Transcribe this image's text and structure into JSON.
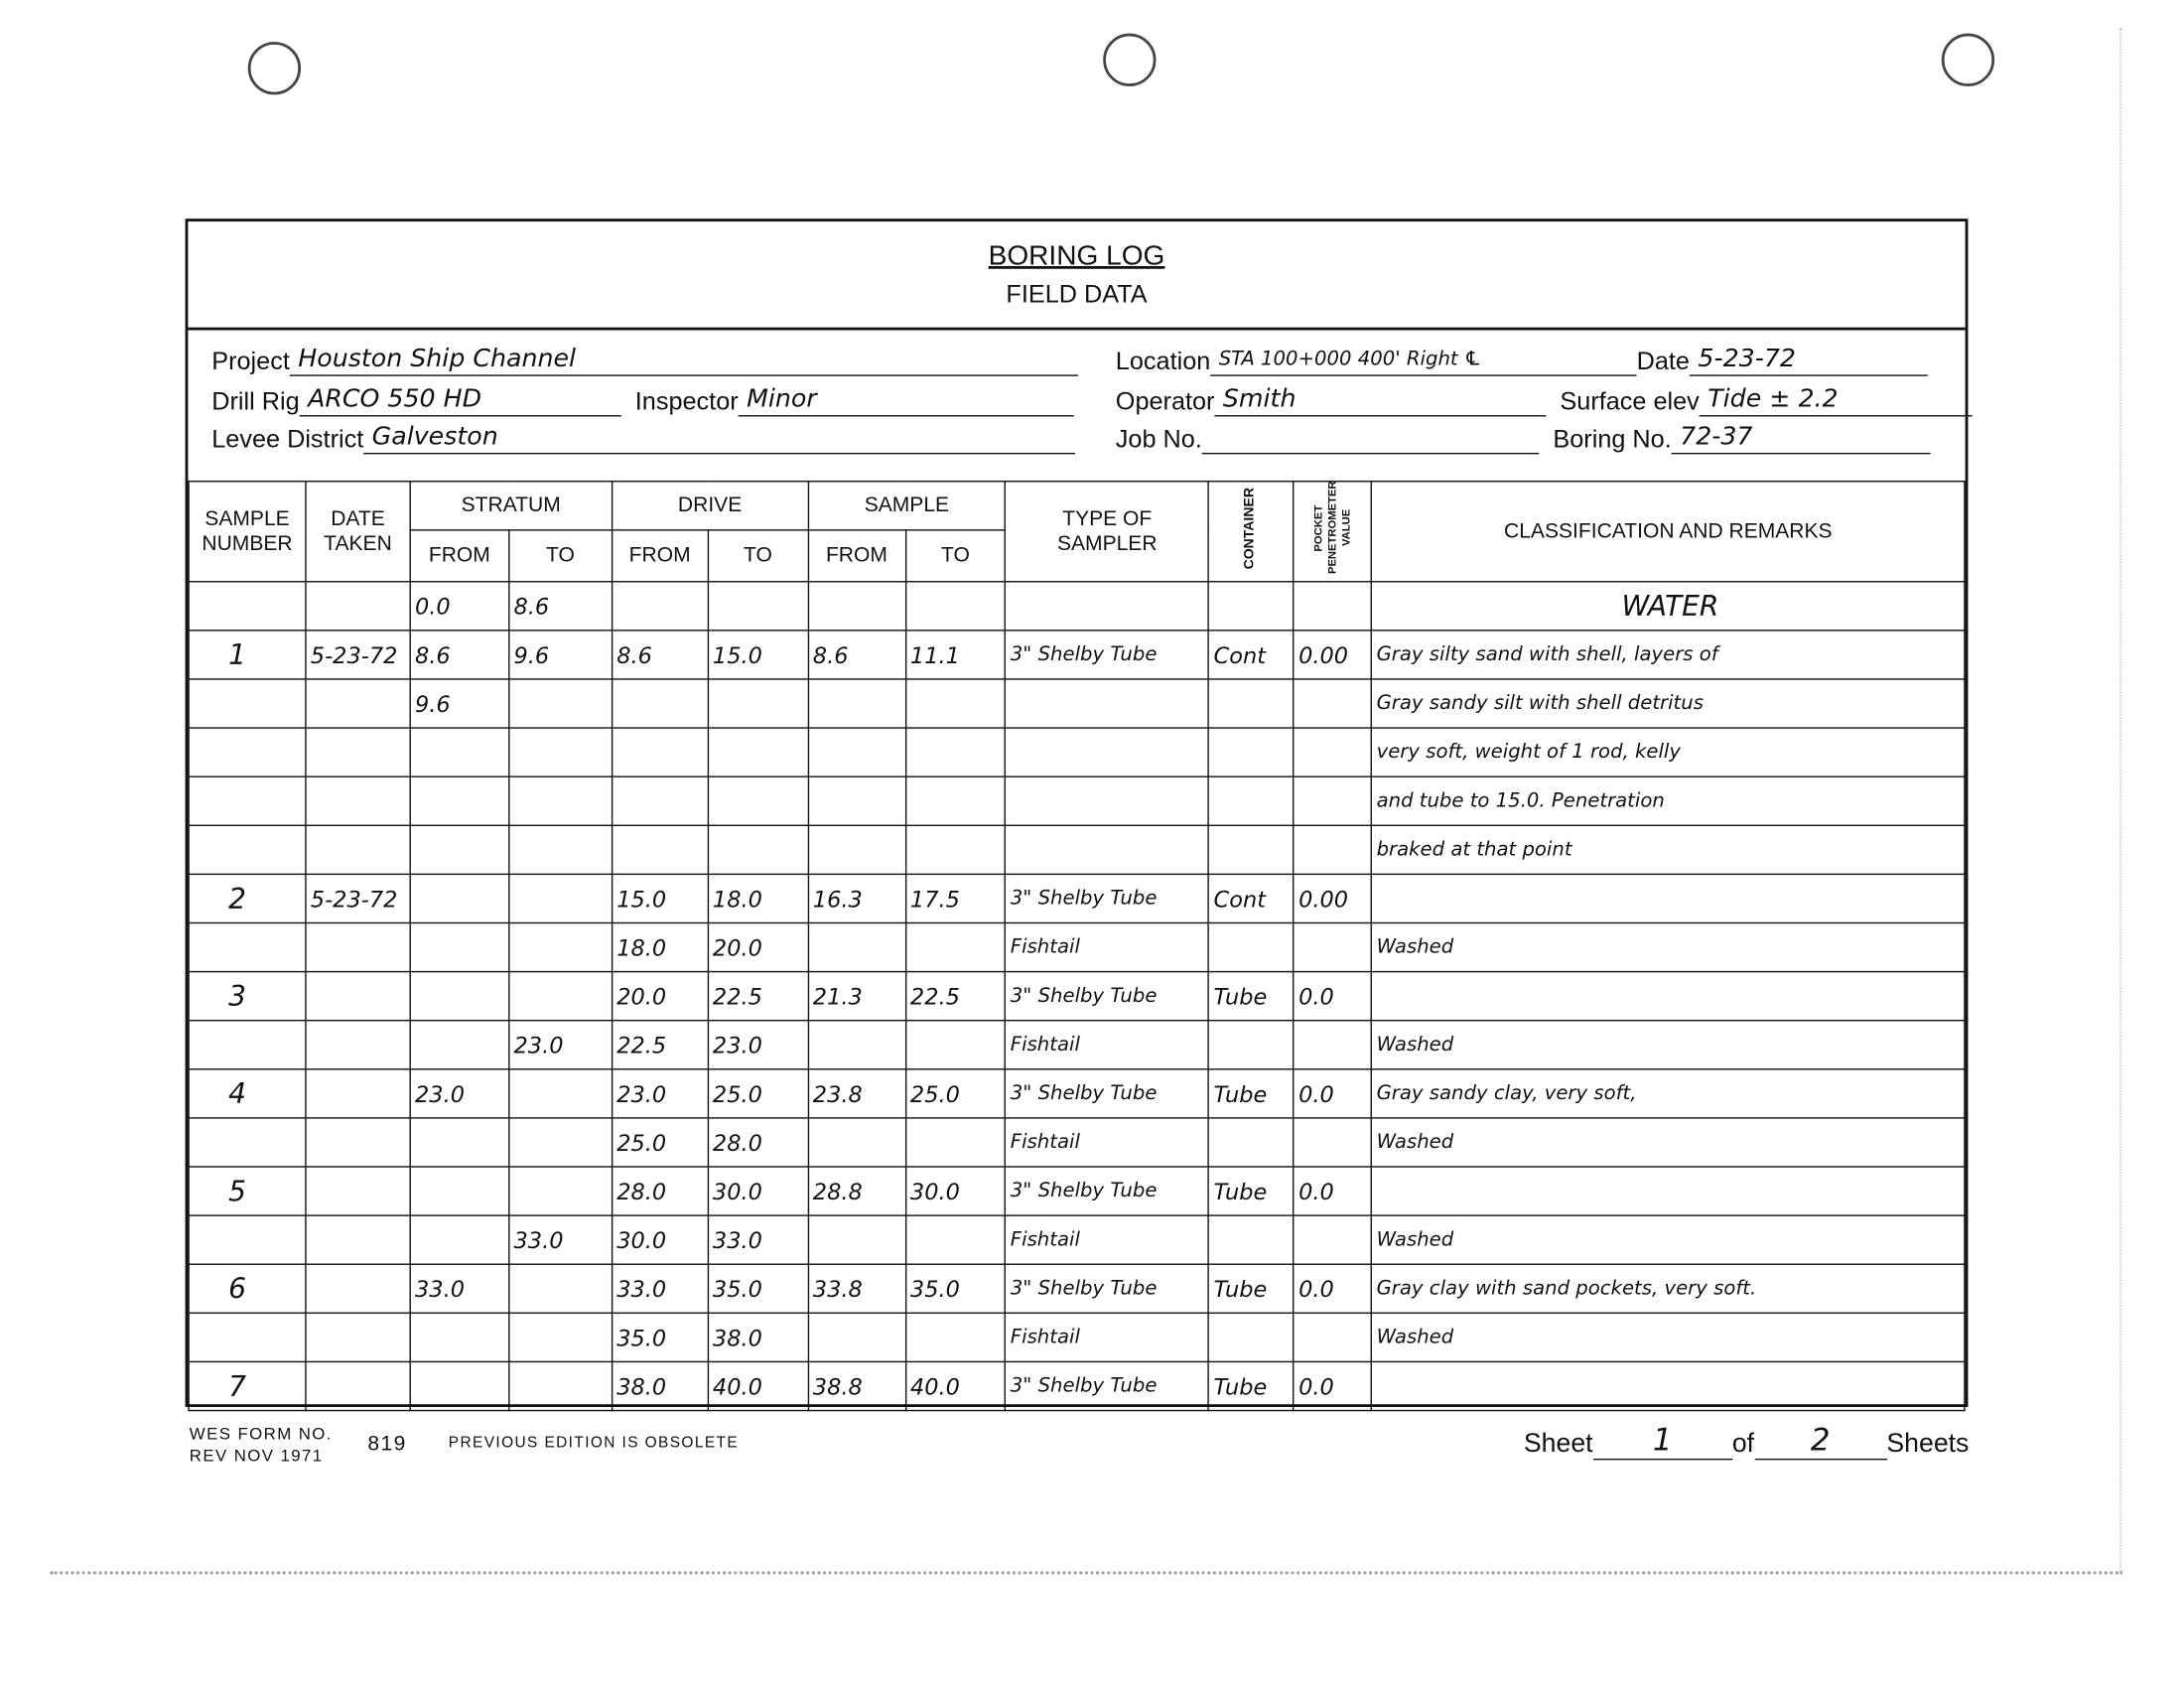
{
  "header": {
    "title": "BORING LOG",
    "subtitle": "FIELD DATA"
  },
  "info": {
    "project_label": "Project",
    "project": "Houston Ship Channel",
    "location_label": "Location",
    "location": "STA 100+000   400' Right ℄",
    "date_label": "Date",
    "date": "5-23-72",
    "drill_rig_label": "Drill Rig",
    "drill_rig": "ARCO 550 HD",
    "inspector_label": "Inspector",
    "inspector": "Minor",
    "operator_label": "Operator",
    "operator": "Smith",
    "surface_elev_label": "Surface elev",
    "surface_elev": "Tide ± 2.2",
    "levee_district_label": "Levee District",
    "levee_district": "Galveston",
    "job_no_label": "Job No.",
    "job_no": "",
    "boring_no_label": "Boring No.",
    "boring_no": "72-37"
  },
  "columns": {
    "sample_number": "SAMPLE NUMBER",
    "date_taken": "DATE TAKEN",
    "stratum": "STRATUM",
    "drive": "DRIVE",
    "sample": "SAMPLE",
    "from": "FROM",
    "to": "TO",
    "type_of_sampler": "TYPE OF SAMPLER",
    "container": "CONTAINER",
    "pocket_penetrometer": "POCKET PENETROMETER VALUE",
    "remarks": "CLASSIFICATION AND REMARKS"
  },
  "rows": [
    [
      "",
      "",
      "0.0",
      "8.6",
      "",
      "",
      "",
      "",
      "",
      "",
      "",
      "WATER"
    ],
    [
      "1",
      "5-23-72",
      "8.6",
      "9.6",
      "8.6",
      "15.0",
      "8.6",
      "11.1",
      "3\" Shelby Tube",
      "Cont",
      "0.00",
      "Gray silty sand with shell, layers of"
    ],
    [
      "",
      "",
      "9.6",
      "",
      "",
      "",
      "",
      "",
      "",
      "",
      "",
      "Gray sandy silt with shell detritus"
    ],
    [
      "",
      "",
      "",
      "",
      "",
      "",
      "",
      "",
      "",
      "",
      "",
      "very soft, weight of 1 rod, kelly"
    ],
    [
      "",
      "",
      "",
      "",
      "",
      "",
      "",
      "",
      "",
      "",
      "",
      "and tube to 15.0. Penetration"
    ],
    [
      "",
      "",
      "",
      "",
      "",
      "",
      "",
      "",
      "",
      "",
      "",
      "braked at that point"
    ],
    [
      "2",
      "5-23-72",
      "",
      "",
      "15.0",
      "18.0",
      "16.3",
      "17.5",
      "3\" Shelby Tube",
      "Cont",
      "0.00",
      ""
    ],
    [
      "",
      "",
      "",
      "",
      "18.0",
      "20.0",
      "",
      "",
      "Fishtail",
      "",
      "",
      "Washed"
    ],
    [
      "3",
      "",
      "",
      "",
      "20.0",
      "22.5",
      "21.3",
      "22.5",
      "3\" Shelby Tube",
      "Tube",
      "0.0",
      ""
    ],
    [
      "",
      "",
      "",
      "23.0",
      "22.5",
      "23.0",
      "",
      "",
      "Fishtail",
      "",
      "",
      "Washed"
    ],
    [
      "4",
      "",
      "23.0",
      "",
      "23.0",
      "25.0",
      "23.8",
      "25.0",
      "3\" Shelby Tube",
      "Tube",
      "0.0",
      "Gray sandy clay, very soft,"
    ],
    [
      "",
      "",
      "",
      "",
      "25.0",
      "28.0",
      "",
      "",
      "Fishtail",
      "",
      "",
      "Washed"
    ],
    [
      "5",
      "",
      "",
      "",
      "28.0",
      "30.0",
      "28.8",
      "30.0",
      "3\" Shelby Tube",
      "Tube",
      "0.0",
      ""
    ],
    [
      "",
      "",
      "",
      "33.0",
      "30.0",
      "33.0",
      "",
      "",
      "Fishtail",
      "",
      "",
      "Washed"
    ],
    [
      "6",
      "",
      "33.0",
      "",
      "33.0",
      "35.0",
      "33.8",
      "35.0",
      "3\" Shelby Tube",
      "Tube",
      "0.0",
      "Gray clay with sand pockets, very soft."
    ],
    [
      "",
      "",
      "",
      "",
      "35.0",
      "38.0",
      "",
      "",
      "Fishtail",
      "",
      "",
      "Washed"
    ],
    [
      "7",
      "",
      "",
      "",
      "38.0",
      "40.0",
      "38.8",
      "40.0",
      "3\" Shelby Tube",
      "Tube",
      "0.0",
      ""
    ]
  ],
  "footer": {
    "form_no": "WES FORM NO.",
    "rev": "REV NOV 1971",
    "form_number": "819",
    "previous_edition": "PREVIOUS EDITION IS OBSOLETE",
    "sheet_label": "Sheet",
    "sheet": "1",
    "of_label": "of",
    "total": "2",
    "sheets_label": "Sheets"
  }
}
